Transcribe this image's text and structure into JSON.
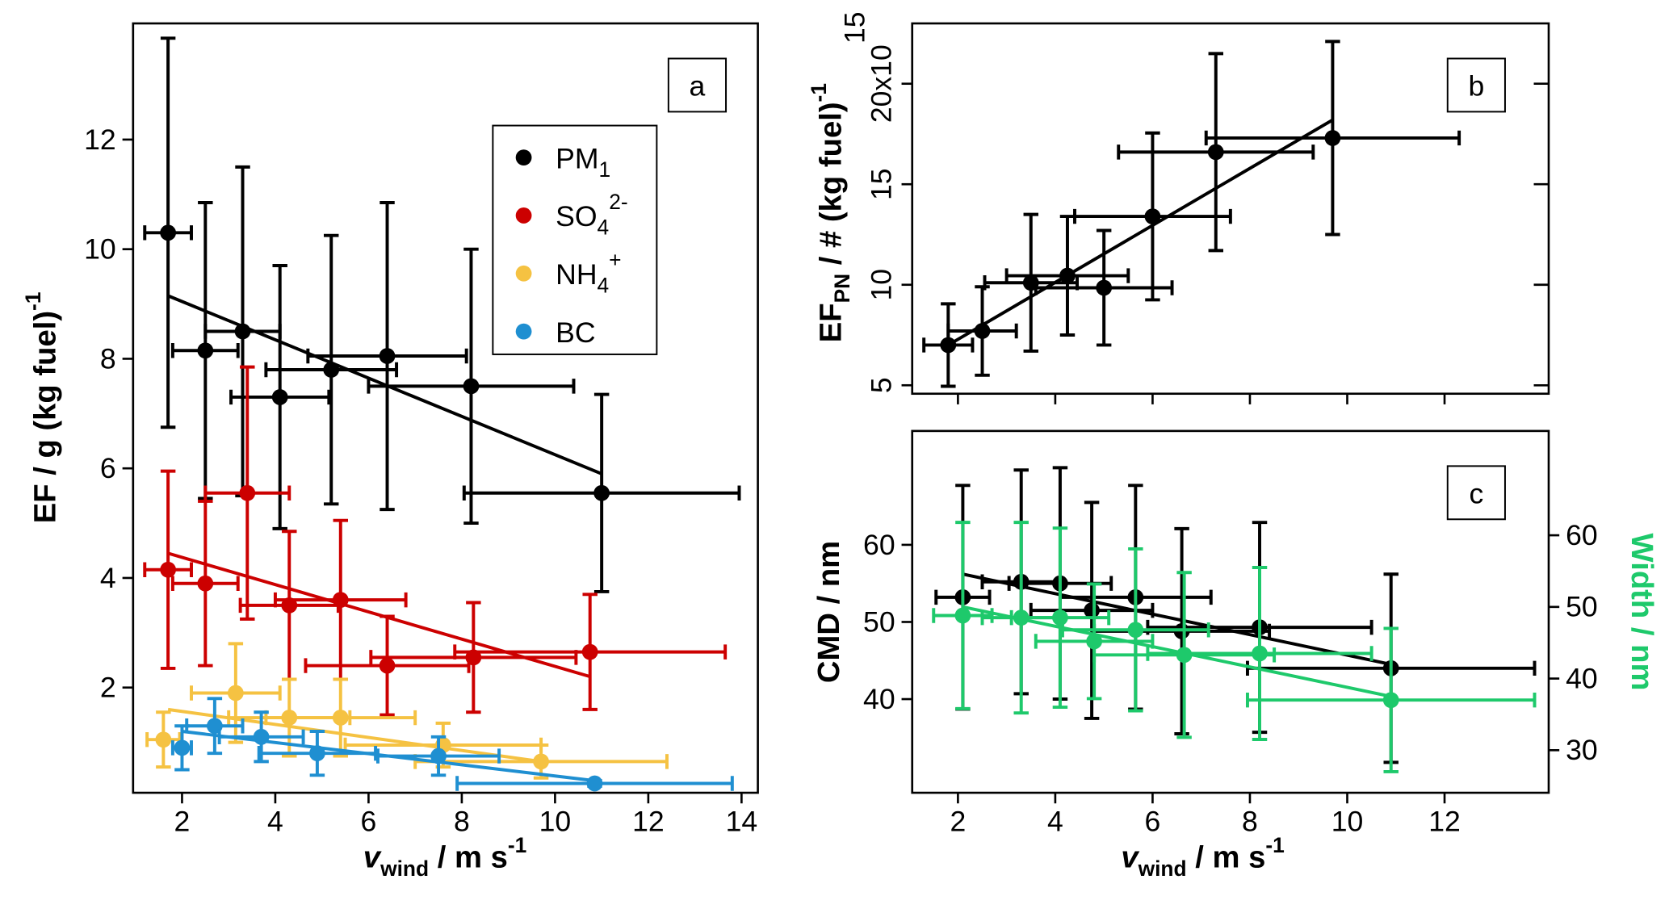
{
  "chart_data": [
    {
      "type": "scatter",
      "panel_label": "a",
      "xlabel": [
        "v",
        "wind",
        " / m s",
        "-1"
      ],
      "ylabel": [
        "EF / g (kg fuel)",
        "-1"
      ],
      "xlim": [
        0.95,
        14.35
      ],
      "ylim": [
        0.08,
        14.12
      ],
      "xticks": [
        2,
        4,
        6,
        8,
        10,
        12,
        14
      ],
      "yticks": [
        2,
        4,
        6,
        8,
        10,
        12
      ],
      "legend": "upper right",
      "series": [
        {
          "name": {
            "base": "PM",
            "sub": "1"
          },
          "color": "#000000",
          "x": [
            1.7,
            2.5,
            3.3,
            4.1,
            5.2,
            6.4,
            8.2,
            11.0
          ],
          "values": [
            10.3,
            8.15,
            8.5,
            7.3,
            7.8,
            8.05,
            7.5,
            5.55
          ],
          "xerr": [
            0.5,
            0.7,
            0.8,
            1.05,
            1.4,
            1.7,
            2.2,
            2.95
          ],
          "yerr": [
            3.55,
            2.7,
            3.0,
            2.4,
            2.45,
            2.8,
            2.5,
            1.8
          ],
          "fit_x": [
            1.7,
            11.0
          ],
          "fit_y": [
            9.15,
            5.9
          ]
        },
        {
          "name": {
            "base": "SO",
            "sub": "4",
            "sup": "2-"
          },
          "color": "#cc0000",
          "x": [
            1.7,
            2.5,
            3.4,
            4.3,
            5.4,
            6.4,
            8.25,
            10.75
          ],
          "values": [
            4.15,
            3.9,
            5.55,
            3.5,
            3.6,
            2.4,
            2.55,
            2.65
          ],
          "xerr": [
            0.5,
            0.7,
            0.9,
            1.05,
            1.4,
            1.75,
            2.2,
            2.9
          ],
          "yerr": [
            1.8,
            1.5,
            2.3,
            1.35,
            1.45,
            0.9,
            1.0,
            1.05
          ],
          "fit_x": [
            1.7,
            10.75
          ],
          "fit_y": [
            4.45,
            2.2
          ]
        },
        {
          "name": {
            "base": "NH",
            "sub": "4",
            "sup": "+"
          },
          "color": "#f5c242",
          "x": [
            1.6,
            3.15,
            4.3,
            5.4,
            7.6,
            9.7
          ],
          "values": [
            1.05,
            1.9,
            1.45,
            1.45,
            0.95,
            0.65
          ],
          "xerr": [
            0.35,
            0.95,
            1.3,
            1.6,
            2.1,
            2.7
          ],
          "yerr": [
            0.5,
            0.9,
            0.7,
            0.7,
            0.4,
            0.3
          ],
          "fit_x": [
            1.7,
            9.7
          ],
          "fit_y": [
            1.6,
            0.65
          ]
        },
        {
          "name": {
            "base": "BC"
          },
          "color": "#1f8fd1",
          "x": [
            2.0,
            2.7,
            3.7,
            4.9,
            7.5,
            10.85
          ],
          "values": [
            0.9,
            1.3,
            1.1,
            0.8,
            0.75,
            0.25
          ],
          "xerr": [
            0.2,
            0.6,
            0.9,
            1.25,
            1.3,
            2.95
          ],
          "yerr": [
            0.4,
            0.5,
            0.45,
            0.4,
            0.35,
            0.05
          ],
          "fit_x": [
            2.0,
            10.85
          ],
          "fit_y": [
            1.2,
            0.3
          ]
        }
      ]
    },
    {
      "type": "scatter",
      "panel_label": "b",
      "ylabel": [
        "EF",
        "PN",
        " / # (kg fuel)",
        "-1"
      ],
      "xlim": [
        1.06,
        14.14
      ],
      "ylim": [
        4.58,
        23.0
      ],
      "xticks": [
        2,
        4,
        6,
        8,
        10,
        12
      ],
      "show_xtick_labels": false,
      "yticks": [
        5,
        10,
        15,
        {
          "value": 20,
          "label": "20x10"
        }
      ],
      "y_exponent": "15",
      "series": [
        {
          "color": "#000000",
          "x": [
            1.8,
            2.5,
            3.5,
            4.25,
            5.0,
            6.0,
            7.3,
            9.7
          ],
          "values": [
            7.0,
            7.7,
            10.1,
            10.45,
            9.85,
            13.4,
            16.6,
            17.3
          ],
          "xerr": [
            0.5,
            0.7,
            0.95,
            1.25,
            1.4,
            1.6,
            2.0,
            2.6
          ],
          "yerr": [
            2.05,
            2.2,
            3.4,
            2.95,
            2.85,
            4.15,
            4.9,
            4.8
          ],
          "fit_x": [
            1.8,
            9.7
          ],
          "fit_y": [
            7.0,
            18.2
          ]
        }
      ]
    },
    {
      "type": "scatter",
      "panel_label": "c",
      "xlabel": [
        "v",
        "wind",
        " / m s",
        "-1"
      ],
      "ylabel": [
        "CMD / nm"
      ],
      "y2label": [
        "Width / nm"
      ],
      "xlim": [
        1.06,
        14.14
      ],
      "ylim": [
        27.86,
        74.76
      ],
      "y2lim": [
        24.06,
        74.56
      ],
      "xticks": [
        2,
        4,
        6,
        8,
        10,
        12
      ],
      "yticks": [
        40,
        50,
        60
      ],
      "y2ticks": [
        30,
        40,
        50,
        60
      ],
      "series": [
        {
          "color": "#000000",
          "x": [
            2.1,
            3.3,
            4.1,
            4.75,
            5.65,
            6.6,
            8.2,
            10.9
          ],
          "values": [
            53.2,
            55.2,
            55.0,
            51.5,
            53.2,
            48.8,
            49.3,
            44.0
          ],
          "xerr": [
            0.55,
            0.8,
            1.05,
            1.25,
            1.55,
            1.8,
            2.3,
            2.95
          ],
          "yerr": [
            14.5,
            14.5,
            15.0,
            14.0,
            14.5,
            13.3,
            13.6,
            12.2
          ],
          "fit_x": [
            2.1,
            10.9
          ],
          "fit_y": [
            56.2,
            44.5
          ]
        },
        {
          "color": "#1ec96b",
          "axis": "y2",
          "x": [
            2.1,
            3.3,
            4.1,
            4.8,
            5.65,
            6.65,
            8.2,
            10.9
          ],
          "values": [
            48.8,
            48.5,
            48.5,
            45.2,
            46.8,
            43.3,
            43.5,
            37.0
          ],
          "xerr": [
            0.6,
            0.8,
            1.0,
            1.2,
            1.5,
            1.85,
            2.3,
            2.95
          ],
          "yerr": [
            13.0,
            13.3,
            12.5,
            8.0,
            11.3,
            11.5,
            12.0,
            10.0
          ],
          "fit_x": [
            2.1,
            10.9
          ],
          "fit_y": [
            50.0,
            37.5
          ]
        }
      ]
    }
  ]
}
